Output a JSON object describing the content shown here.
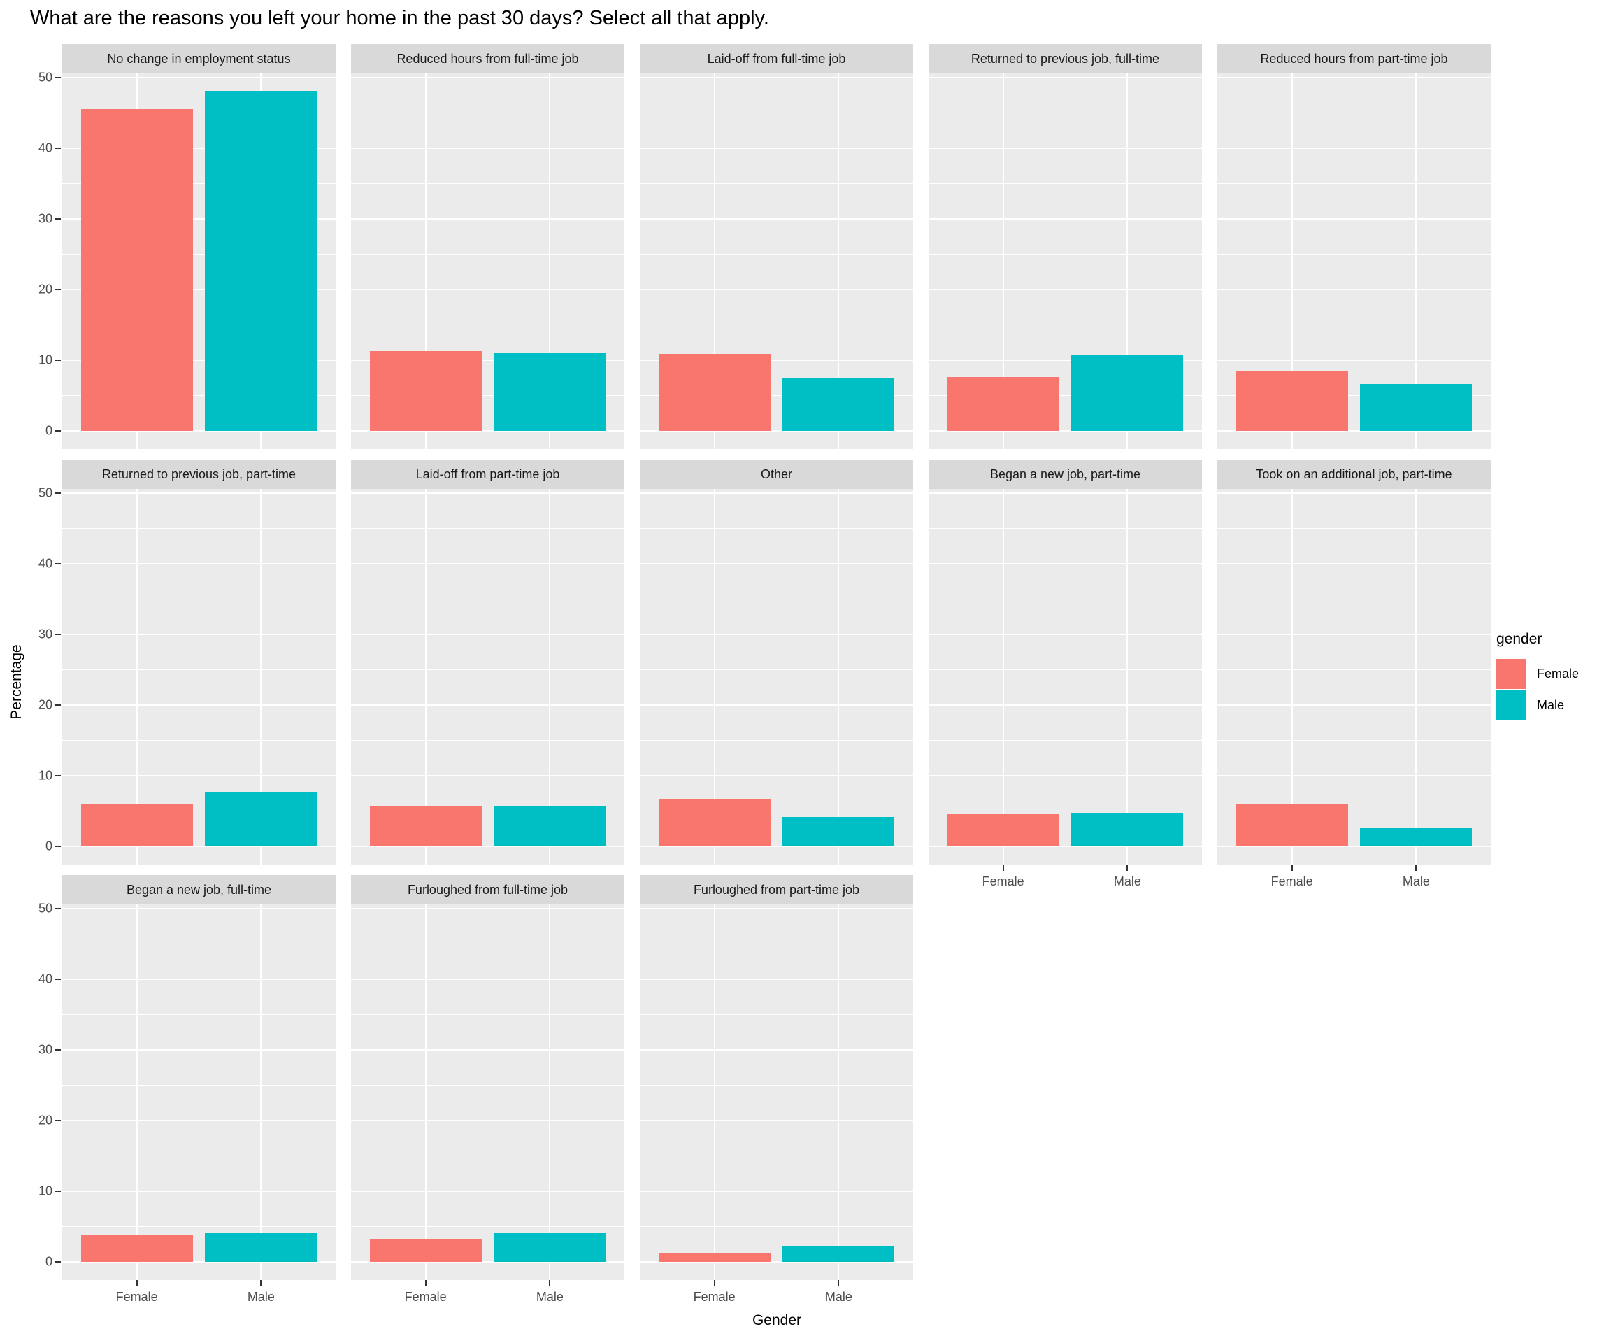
{
  "title": "What are the reasons you left your home in the past 30 days? Select all that apply.",
  "axes": {
    "y_title": "Percentage",
    "x_title": "Gender",
    "y_ticks": [
      0,
      10,
      20,
      30,
      40,
      50
    ],
    "x_categories": [
      "Female",
      "Male"
    ]
  },
  "legend": {
    "title": "gender",
    "entries": [
      {
        "label": "Female",
        "color": "#F8766D"
      },
      {
        "label": "Male",
        "color": "#00BFC4"
      }
    ]
  },
  "colors": {
    "female": "#F8766D",
    "male": "#00BFC4",
    "panel_bg": "#EBEBEB",
    "strip_bg": "#D9D9D9",
    "grid": "#FFFFFF",
    "axis_text": "#4D4D4D",
    "tick_mark": "#333333",
    "text": "#000000"
  },
  "chart_data": {
    "type": "bar",
    "title": "What are the reasons you left your home in the past 30 days? Select all that apply.",
    "xlabel": "Gender",
    "ylabel": "Percentage",
    "ylim": [
      0,
      50
    ],
    "grid": true,
    "legend_position": "right",
    "x_categories": [
      "Female",
      "Male"
    ],
    "facets": [
      {
        "label": "No change in employment status",
        "values": [
          45.6,
          48.2
        ]
      },
      {
        "label": "Reduced hours from full-time job",
        "values": [
          11.3,
          11.1
        ]
      },
      {
        "label": "Laid-off from full-time job",
        "values": [
          10.9,
          7.5
        ]
      },
      {
        "label": "Returned to previous job, full-time",
        "values": [
          7.7,
          10.7
        ]
      },
      {
        "label": "Reduced hours from part-time job",
        "values": [
          8.5,
          6.7
        ]
      },
      {
        "label": "Returned to previous job, part-time",
        "values": [
          6.0,
          7.8
        ]
      },
      {
        "label": "Laid-off from part-time job",
        "values": [
          5.7,
          5.7
        ]
      },
      {
        "label": "Other",
        "values": [
          6.8,
          4.2
        ]
      },
      {
        "label": "Began a new job, part-time",
        "values": [
          4.6,
          4.7
        ]
      },
      {
        "label": "Took on an additional job, part-time",
        "values": [
          6.0,
          2.6
        ]
      },
      {
        "label": "Began a new job, full-time",
        "values": [
          3.8,
          4.1
        ]
      },
      {
        "label": "Furloughed from full-time job",
        "values": [
          3.2,
          4.1
        ]
      },
      {
        "label": "Furloughed from part-time job",
        "values": [
          1.2,
          2.2
        ]
      }
    ]
  }
}
